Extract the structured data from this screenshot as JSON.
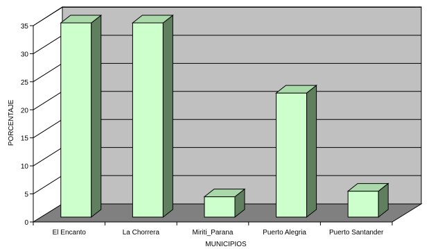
{
  "chart_data": {
    "type": "bar",
    "style": "3d-column",
    "categories": [
      "El Encanto",
      "La Chorrera",
      "Miriti_Parana",
      "Puerto Alegria",
      "Puerto Santander"
    ],
    "values": [
      35,
      35,
      4,
      22.5,
      5
    ],
    "xlabel": "MUNICIPIOS",
    "ylabel": "PORCENTAJE",
    "ylim": [
      0,
      35
    ],
    "yticks": [
      "0",
      "5",
      "10",
      "15",
      "20",
      "25",
      "30",
      "35"
    ],
    "grid": true,
    "legend": "none",
    "colors": {
      "bar_front": "#ccffcc",
      "bar_top": "#a9d9a9",
      "bar_side": "#5f7f5f",
      "back_wall": "#c0c0c0",
      "floor": "#808080"
    }
  }
}
